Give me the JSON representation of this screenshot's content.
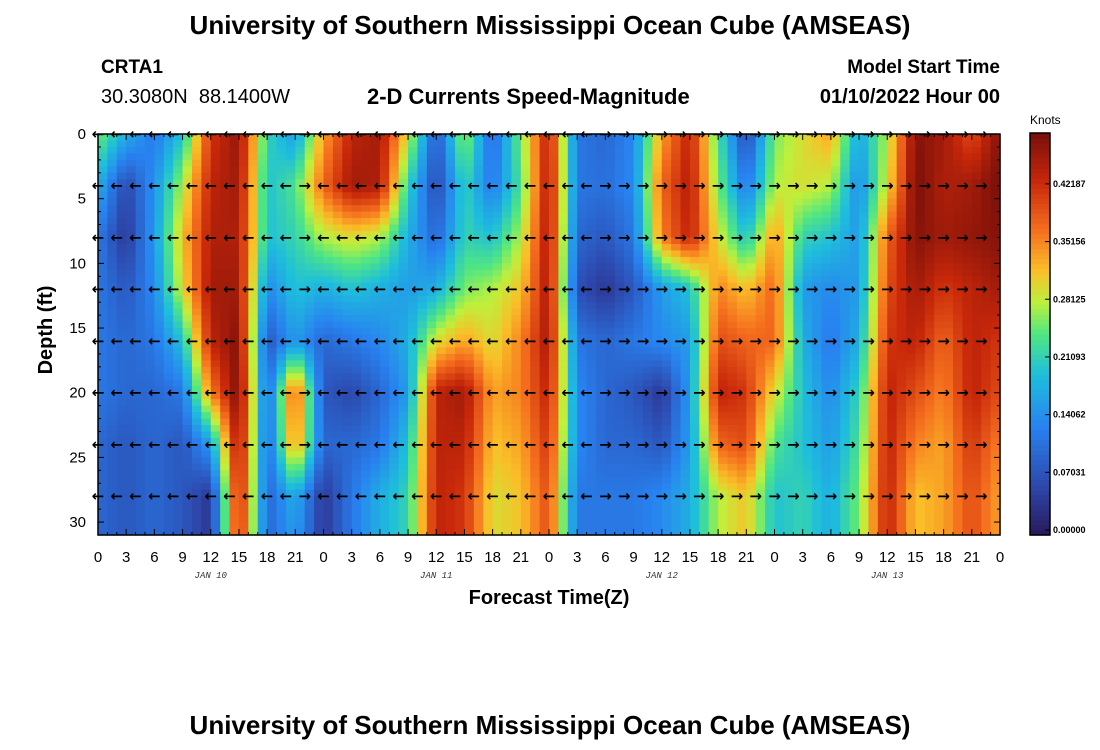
{
  "header": {
    "title": "University of Southern Mississippi Ocean Cube (AMSEAS)",
    "station_id": "CRTA1",
    "station_coords": "30.3080N  88.1400W",
    "chart_subtitle": "2-D Currents Speed-Magnitude",
    "model_start_label": "Model Start Time",
    "model_start_value": "01/10/2022 Hour 00"
  },
  "footer": {
    "title_repeat": "University of Southern Mississippi Ocean Cube (AMSEAS)"
  },
  "chart_data": {
    "type": "heatmap",
    "title": "2-D Currents Speed-Magnitude",
    "xlabel": "Forecast Time(Z)",
    "ylabel": "Depth (ft)",
    "xlim": [
      0,
      96
    ],
    "ylim": [
      0,
      31
    ],
    "x_tick_values": [
      0,
      3,
      6,
      9,
      12,
      15,
      18,
      21,
      24,
      27,
      30,
      33,
      36,
      39,
      42,
      45,
      48,
      51,
      54,
      57,
      60,
      63,
      66,
      69,
      72,
      75,
      78,
      81,
      84,
      87,
      90,
      93,
      96
    ],
    "x_tick_labels": [
      "0",
      "3",
      "6",
      "9",
      "12",
      "15",
      "18",
      "21",
      "0",
      "3",
      "6",
      "9",
      "12",
      "15",
      "18",
      "21",
      "0",
      "3",
      "6",
      "9",
      "12",
      "15",
      "18",
      "21",
      "0",
      "3",
      "6",
      "9",
      "12",
      "15",
      "18",
      "21",
      "0"
    ],
    "date_labels": [
      {
        "text": "JAN 10",
        "hour": 12
      },
      {
        "text": "JAN 11",
        "hour": 36
      },
      {
        "text": "JAN 12",
        "hour": 60
      },
      {
        "text": "JAN 13",
        "hour": 84
      }
    ],
    "y_tick_values": [
      0,
      5,
      10,
      15,
      20,
      25,
      30
    ],
    "y_tick_labels": [
      "0",
      "5",
      "10",
      "15",
      "20",
      "25",
      "30"
    ],
    "colorbar": {
      "unit": "Knots",
      "min": 0.0,
      "max": 0.49,
      "tick_values": [
        0.0,
        0.07031,
        0.14062,
        0.21093,
        0.28125,
        0.35156,
        0.42187
      ],
      "tick_labels": [
        "0.00000",
        "0.07031",
        "0.14062",
        "0.21093",
        "0.28125",
        "0.35156",
        "0.42187"
      ]
    },
    "depth_rows_ft": [
      0,
      4,
      8,
      12,
      16,
      20,
      24,
      28,
      31
    ],
    "time_cols_hr": [
      0,
      3,
      6,
      9,
      12,
      15,
      18,
      21,
      24,
      27,
      30,
      33,
      36,
      39,
      42,
      45,
      48,
      51,
      54,
      57,
      60,
      63,
      66,
      69,
      72,
      75,
      78,
      81,
      84,
      87,
      90,
      93,
      96
    ],
    "speed_knots": [
      [
        0.26,
        0.18,
        0.12,
        0.2,
        0.42,
        0.47,
        0.22,
        0.16,
        0.34,
        0.44,
        0.46,
        0.3,
        0.08,
        0.28,
        0.1,
        0.26,
        0.45,
        0.12,
        0.1,
        0.14,
        0.34,
        0.44,
        0.24,
        0.06,
        0.26,
        0.3,
        0.34,
        0.17,
        0.28,
        0.48,
        0.46,
        0.4,
        0.48
      ],
      [
        0.18,
        0.06,
        0.15,
        0.28,
        0.44,
        0.46,
        0.2,
        0.24,
        0.38,
        0.46,
        0.45,
        0.22,
        0.06,
        0.22,
        0.12,
        0.24,
        0.46,
        0.12,
        0.11,
        0.14,
        0.38,
        0.45,
        0.26,
        0.12,
        0.28,
        0.3,
        0.28,
        0.14,
        0.3,
        0.49,
        0.45,
        0.46,
        0.49
      ],
      [
        0.12,
        0.04,
        0.16,
        0.32,
        0.45,
        0.45,
        0.2,
        0.22,
        0.28,
        0.3,
        0.28,
        0.18,
        0.1,
        0.22,
        0.2,
        0.28,
        0.46,
        0.1,
        0.08,
        0.12,
        0.36,
        0.44,
        0.3,
        0.2,
        0.35,
        0.22,
        0.2,
        0.16,
        0.38,
        0.48,
        0.46,
        0.47,
        0.48
      ],
      [
        0.12,
        0.08,
        0.14,
        0.3,
        0.46,
        0.46,
        0.14,
        0.2,
        0.18,
        0.2,
        0.18,
        0.16,
        0.18,
        0.26,
        0.28,
        0.32,
        0.46,
        0.07,
        0.04,
        0.08,
        0.16,
        0.2,
        0.36,
        0.32,
        0.38,
        0.16,
        0.14,
        0.16,
        0.4,
        0.46,
        0.42,
        0.44,
        0.46
      ],
      [
        0.12,
        0.1,
        0.12,
        0.2,
        0.44,
        0.48,
        0.08,
        0.16,
        0.1,
        0.12,
        0.14,
        0.18,
        0.3,
        0.34,
        0.3,
        0.36,
        0.46,
        0.12,
        0.1,
        0.12,
        0.14,
        0.16,
        0.4,
        0.38,
        0.38,
        0.18,
        0.12,
        0.18,
        0.42,
        0.44,
        0.38,
        0.44,
        0.42
      ],
      [
        0.12,
        0.1,
        0.1,
        0.12,
        0.36,
        0.49,
        0.1,
        0.4,
        0.08,
        0.06,
        0.1,
        0.16,
        0.44,
        0.46,
        0.34,
        0.36,
        0.44,
        0.14,
        0.1,
        0.08,
        0.04,
        0.16,
        0.44,
        0.42,
        0.3,
        0.2,
        0.14,
        0.22,
        0.44,
        0.4,
        0.36,
        0.44,
        0.4
      ],
      [
        0.1,
        0.08,
        0.1,
        0.08,
        0.16,
        0.47,
        0.1,
        0.36,
        0.1,
        0.1,
        0.12,
        0.2,
        0.44,
        0.44,
        0.32,
        0.34,
        0.42,
        0.14,
        0.1,
        0.1,
        0.08,
        0.16,
        0.38,
        0.4,
        0.24,
        0.2,
        0.16,
        0.24,
        0.44,
        0.36,
        0.34,
        0.42,
        0.36
      ],
      [
        0.1,
        0.08,
        0.1,
        0.08,
        0.04,
        0.45,
        0.1,
        0.18,
        0.04,
        0.12,
        0.18,
        0.22,
        0.44,
        0.42,
        0.3,
        0.32,
        0.4,
        0.12,
        0.12,
        0.12,
        0.14,
        0.18,
        0.28,
        0.32,
        0.2,
        0.22,
        0.18,
        0.26,
        0.44,
        0.32,
        0.34,
        0.4,
        0.34
      ],
      [
        0.1,
        0.08,
        0.1,
        0.08,
        0.04,
        0.44,
        0.1,
        0.16,
        0.04,
        0.12,
        0.18,
        0.22,
        0.44,
        0.42,
        0.3,
        0.32,
        0.4,
        0.12,
        0.12,
        0.12,
        0.14,
        0.18,
        0.28,
        0.32,
        0.2,
        0.22,
        0.18,
        0.26,
        0.44,
        0.32,
        0.34,
        0.4,
        0.34
      ]
    ],
    "vector_depths_ft": [
      0,
      4,
      8,
      12,
      16,
      20,
      24,
      28
    ],
    "vector_times_hr": [
      0,
      2,
      4,
      6,
      8,
      10,
      12,
      14,
      16,
      18,
      20,
      22,
      24,
      26,
      28,
      30,
      32,
      34,
      36,
      38,
      40,
      42,
      44,
      46,
      48,
      50,
      52,
      54,
      56,
      58,
      60,
      62,
      64,
      66,
      68,
      70,
      72,
      74,
      76,
      78,
      80,
      82,
      84,
      86,
      88,
      90,
      92,
      94
    ],
    "vector_direction_note": "Arrow glyphs: left-pointing = westward flow, right-pointing = eastward flow",
    "vector_directions": {
      "west": "←",
      "east": "→",
      "pattern_by_time_hr": [
        "←",
        "←",
        "←",
        "←",
        "←",
        "←",
        "←",
        "←",
        "←",
        "←",
        "←",
        "→",
        "←",
        "←",
        "←",
        "←",
        "←",
        "←",
        "←",
        "←",
        "←",
        "←",
        "←",
        "←",
        "←",
        "←",
        "←",
        "→",
        "→",
        "→",
        "→",
        "→",
        "→",
        "→",
        "→",
        "→",
        "→",
        "→",
        "→",
        "→",
        "→",
        "→",
        "→",
        "→",
        "→",
        "→",
        "→",
        "→"
      ]
    }
  }
}
